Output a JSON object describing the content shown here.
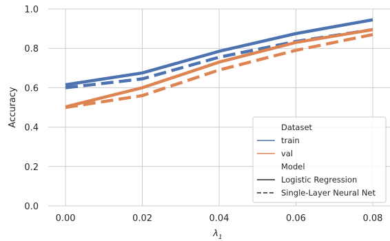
{
  "chart_data": {
    "type": "line",
    "xlabel": "λ",
    "xlabel_sub": "1",
    "ylabel": "Accuracy",
    "x": [
      0.0,
      0.02,
      0.04,
      0.06,
      0.08
    ],
    "x_ticks": [
      "0.00",
      "0.02",
      "0.04",
      "0.06",
      "0.08"
    ],
    "y_ticks": [
      "0.0",
      "0.2",
      "0.4",
      "0.6",
      "0.8",
      "1.0"
    ],
    "xlim": [
      -0.0045,
      0.0845
    ],
    "ylim": [
      0.0,
      1.0
    ],
    "grid": true,
    "series": [
      {
        "dataset": "train",
        "model": "Logistic Regression",
        "color": "#4c72b0",
        "dash": "solid",
        "values": [
          0.615,
          0.675,
          0.785,
          0.875,
          0.945
        ]
      },
      {
        "dataset": "train",
        "model": "Single-Layer Neural Net",
        "color": "#4c72b0",
        "dash": "dashed",
        "values": [
          0.6,
          0.645,
          0.755,
          0.835,
          0.895
        ]
      },
      {
        "dataset": "val",
        "model": "Logistic Regression",
        "color": "#dd8452",
        "dash": "solid",
        "values": [
          0.503,
          0.6,
          0.73,
          0.83,
          0.895
        ]
      },
      {
        "dataset": "val",
        "model": "Single-Layer Neural Net",
        "color": "#dd8452",
        "dash": "dashed",
        "values": [
          0.5,
          0.56,
          0.69,
          0.79,
          0.87
        ]
      }
    ],
    "legend": {
      "placement": "lower-right",
      "dataset_title": "Dataset",
      "dataset_entries": [
        {
          "label": "train",
          "color": "#4c72b0"
        },
        {
          "label": "val",
          "color": "#dd8452"
        }
      ],
      "model_title": "Model",
      "model_entries": [
        {
          "label": "Logistic Regression",
          "dash": "solid"
        },
        {
          "label": "Single-Layer Neural Net",
          "dash": "dashed"
        }
      ]
    }
  }
}
